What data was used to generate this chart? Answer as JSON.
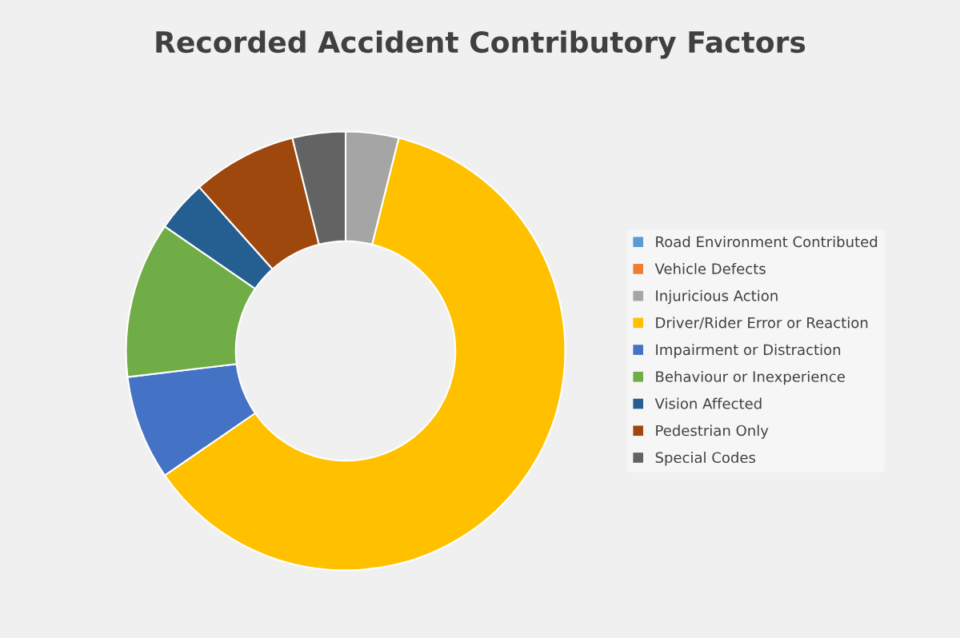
{
  "chart_data": {
    "type": "donut",
    "title": "Recorded Accident Contributory Factors",
    "categories": [
      "Road Environment Contributed",
      "Vehicle Defects",
      "Injuricious Action",
      "Driver/Rider Error or Reaction",
      "Impairment or Distraction",
      "Behaviour or Inexperience",
      "Vision Affected",
      "Pedestrian Only",
      "Special Codes"
    ],
    "values": [
      0,
      0,
      3.9,
      61.5,
      7.7,
      11.5,
      3.8,
      7.7,
      3.9
    ],
    "colors": [
      "#5b9bd5",
      "#ed7d31",
      "#a5a5a5",
      "#ffc000",
      "#4472c4",
      "#70ad47",
      "#255e91",
      "#9e480e",
      "#636363"
    ],
    "legend": "right"
  }
}
